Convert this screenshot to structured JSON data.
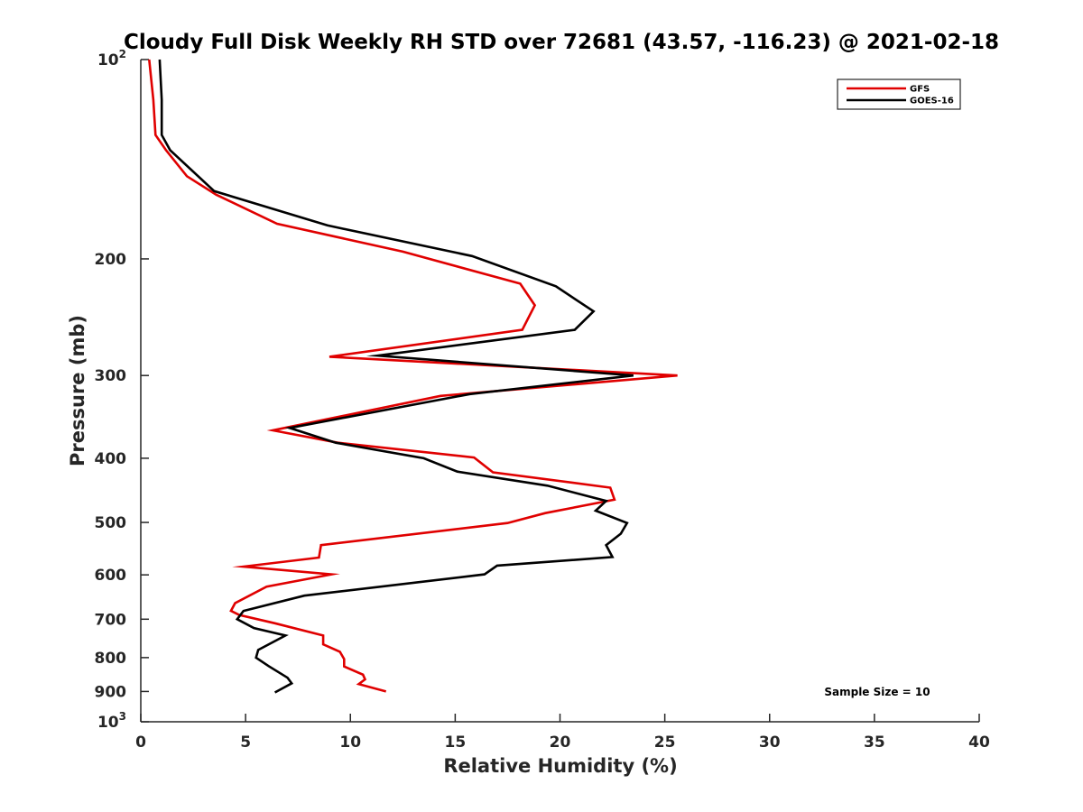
{
  "chart_data": {
    "type": "line",
    "title": "Cloudy Full Disk Weekly RH STD over 72681 (43.57, -116.23) @ 2021-02-18",
    "xlabel": "Relative Humidity (%)",
    "ylabel": "Pressure (mb)",
    "xlim": [
      0,
      40
    ],
    "ylim": [
      100,
      1000
    ],
    "y_scale": "log",
    "y_reversed": true,
    "x_ticks": [
      "0",
      "5",
      "10",
      "15",
      "20",
      "25",
      "30",
      "35",
      "40"
    ],
    "y_ticks": [
      {
        "value": 100,
        "base": "10",
        "exp": "2"
      },
      {
        "value": 200,
        "label": "200"
      },
      {
        "value": 300,
        "label": "300"
      },
      {
        "value": 400,
        "label": "400"
      },
      {
        "value": 500,
        "label": "500"
      },
      {
        "value": 600,
        "label": "600"
      },
      {
        "value": 700,
        "label": "700"
      },
      {
        "value": 800,
        "label": "800"
      },
      {
        "value": 900,
        "label": "900"
      },
      {
        "value": 1000,
        "base": "10",
        "exp": "3"
      }
    ],
    "grid": false,
    "legend_position": "top-right",
    "annotation": "Sample Size = 10",
    "series": [
      {
        "name": "GFS",
        "color": "#e00000",
        "points": [
          [
            0.4,
            100
          ],
          [
            0.6,
            115
          ],
          [
            0.7,
            130
          ],
          [
            1.2,
            137
          ],
          [
            2.2,
            150
          ],
          [
            3.6,
            160
          ],
          [
            6.5,
            177
          ],
          [
            12.5,
            195
          ],
          [
            18.1,
            218
          ],
          [
            18.8,
            235
          ],
          [
            18.2,
            256
          ],
          [
            9.0,
            281
          ],
          [
            25.6,
            300
          ],
          [
            14.3,
            322
          ],
          [
            6.3,
            363
          ],
          [
            9.4,
            379
          ],
          [
            15.9,
            399
          ],
          [
            16.8,
            420
          ],
          [
            22.4,
            443
          ],
          [
            22.6,
            462
          ],
          [
            19.3,
            484
          ],
          [
            17.5,
            501
          ],
          [
            8.6,
            541
          ],
          [
            8.5,
            565
          ],
          [
            4.9,
            583
          ],
          [
            9.1,
            599
          ],
          [
            6.0,
            625
          ],
          [
            4.5,
            662
          ],
          [
            4.3,
            680
          ],
          [
            4.7,
            690
          ],
          [
            6.4,
            710
          ],
          [
            8.7,
            741
          ],
          [
            8.7,
            764
          ],
          [
            9.5,
            784
          ],
          [
            9.7,
            804
          ],
          [
            9.7,
            825
          ],
          [
            10.6,
            849
          ],
          [
            10.7,
            863
          ],
          [
            10.4,
            877
          ],
          [
            11.7,
            900
          ]
        ]
      },
      {
        "name": "GOES-16",
        "color": "#000000",
        "points": [
          [
            0.9,
            100
          ],
          [
            1.0,
            115
          ],
          [
            1.0,
            130
          ],
          [
            1.4,
            137
          ],
          [
            3.5,
            158
          ],
          [
            8.9,
            178
          ],
          [
            15.8,
            198
          ],
          [
            19.8,
            220
          ],
          [
            21.6,
            240
          ],
          [
            20.7,
            256
          ],
          [
            11.3,
            280
          ],
          [
            23.5,
            300
          ],
          [
            15.7,
            320
          ],
          [
            7.1,
            360
          ],
          [
            9.3,
            379
          ],
          [
            13.5,
            400
          ],
          [
            15.1,
            419
          ],
          [
            19.4,
            440
          ],
          [
            22.2,
            464
          ],
          [
            21.7,
            480
          ],
          [
            23.2,
            501
          ],
          [
            22.9,
            520
          ],
          [
            22.2,
            541
          ],
          [
            22.5,
            564
          ],
          [
            17.0,
            581
          ],
          [
            16.4,
            599
          ],
          [
            7.8,
            645
          ],
          [
            4.9,
            680
          ],
          [
            4.6,
            700
          ],
          [
            5.4,
            722
          ],
          [
            6.9,
            741
          ],
          [
            5.6,
            779
          ],
          [
            5.5,
            800
          ],
          [
            6.1,
            824
          ],
          [
            7.0,
            858
          ],
          [
            7.2,
            875
          ],
          [
            6.4,
            903
          ]
        ]
      }
    ]
  }
}
